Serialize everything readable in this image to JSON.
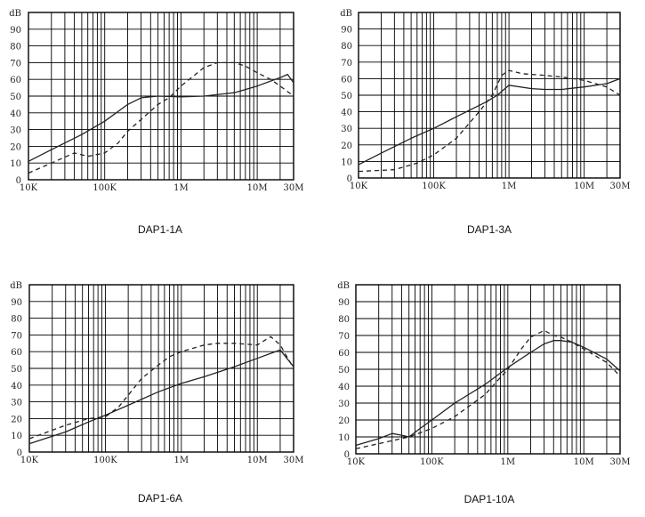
{
  "chart_data": [
    {
      "type": "line",
      "title": "DAP1-1A",
      "xscale": "log",
      "xlim": [
        10000,
        30000000
      ],
      "ylim": [
        0,
        100
      ],
      "ylabel": "dB",
      "yticks": [
        "0",
        "10",
        "20",
        "30",
        "40",
        "50",
        "60",
        "70",
        "80",
        "90",
        "dB"
      ],
      "xticks": [
        {
          "v": 10000,
          "label": "10K"
        },
        {
          "v": 100000,
          "label": "100K"
        },
        {
          "v": 1000000,
          "label": "1M"
        },
        {
          "v": 10000000,
          "label": "10M"
        },
        {
          "v": 30000000,
          "label": "30M"
        }
      ],
      "series": [
        {
          "style": "solid",
          "x": [
            10000,
            20000,
            50000,
            100000,
            200000,
            300000,
            500000,
            1000000,
            2000000,
            5000000,
            10000000,
            15000000,
            20000000,
            25000000,
            30000000
          ],
          "y": [
            11,
            18,
            27,
            35,
            45,
            49,
            50,
            49.5,
            50,
            52,
            56,
            59,
            61,
            63,
            58
          ]
        },
        {
          "style": "dashed",
          "x": [
            10000,
            20000,
            40000,
            60000,
            100000,
            150000,
            200000,
            300000,
            500000,
            700000,
            1000000,
            2000000,
            3000000,
            5000000,
            7000000,
            10000000,
            15000000,
            20000000,
            30000000
          ],
          "y": [
            4,
            10,
            16,
            14,
            16,
            22,
            29,
            36,
            45,
            49,
            56,
            67,
            70,
            70,
            68,
            64,
            60,
            56,
            50
          ]
        }
      ]
    },
    {
      "type": "line",
      "title": "DAP1-3A",
      "xscale": "log",
      "xlim": [
        10000,
        30000000
      ],
      "ylim": [
        0,
        100
      ],
      "ylabel": "dB",
      "yticks": [
        "0",
        "10",
        "20",
        "30",
        "40",
        "50",
        "60",
        "70",
        "80",
        "90",
        "dB"
      ],
      "xticks": [
        {
          "v": 10000,
          "label": "10K"
        },
        {
          "v": 100000,
          "label": "100K"
        },
        {
          "v": 1000000,
          "label": "1M"
        },
        {
          "v": 10000000,
          "label": "10M"
        },
        {
          "v": 30000000,
          "label": "30M"
        }
      ],
      "series": [
        {
          "style": "solid",
          "x": [
            10000,
            20000,
            50000,
            100000,
            200000,
            500000,
            700000,
            1000000,
            2000000,
            3000000,
            5000000,
            10000000,
            20000000,
            30000000
          ],
          "y": [
            8,
            15,
            24,
            30,
            37,
            46,
            50,
            56,
            54,
            53.5,
            53.5,
            55,
            57,
            60
          ]
        },
        {
          "style": "dashed",
          "x": [
            10000,
            30000,
            60000,
            100000,
            200000,
            400000,
            600000,
            800000,
            1000000,
            1500000,
            3000000,
            5000000,
            10000000,
            20000000,
            30000000
          ],
          "y": [
            4,
            5,
            9,
            14,
            24,
            40,
            50,
            62,
            65,
            63,
            62,
            61,
            59,
            55,
            50
          ]
        }
      ]
    },
    {
      "type": "line",
      "title": "DAP1-6A",
      "xscale": "log",
      "xlim": [
        10000,
        30000000
      ],
      "ylim": [
        0,
        100
      ],
      "ylabel": "dB",
      "yticks": [
        "0",
        "10",
        "20",
        "30",
        "40",
        "50",
        "60",
        "70",
        "80",
        "90",
        "dB"
      ],
      "xticks": [
        {
          "v": 10000,
          "label": "10K"
        },
        {
          "v": 100000,
          "label": "100K"
        },
        {
          "v": 1000000,
          "label": "1M"
        },
        {
          "v": 10000000,
          "label": "10M"
        },
        {
          "v": 30000000,
          "label": "30M"
        }
      ],
      "series": [
        {
          "style": "solid",
          "x": [
            10000,
            30000,
            60000,
            100000,
            200000,
            500000,
            1000000,
            2000000,
            5000000,
            10000000,
            15000000,
            20000000,
            30000000
          ],
          "y": [
            5,
            12,
            18,
            22,
            28,
            36,
            41,
            45,
            51,
            56,
            59,
            61,
            51
          ]
        },
        {
          "style": "dashed",
          "x": [
            10000,
            30000,
            60000,
            100000,
            150000,
            200000,
            300000,
            500000,
            700000,
            1000000,
            2000000,
            3000000,
            5000000,
            10000000,
            15000000,
            20000000,
            30000000
          ],
          "y": [
            8,
            16,
            20,
            21,
            27,
            34,
            44,
            52,
            57,
            60,
            64,
            65,
            65,
            64,
            69,
            64,
            50
          ]
        }
      ]
    },
    {
      "type": "line",
      "title": "DAP1-10A",
      "xscale": "log",
      "xlim": [
        10000,
        30000000
      ],
      "ylim": [
        0,
        100
      ],
      "ylabel": "dB",
      "yticks": [
        "0",
        "10",
        "20",
        "30",
        "40",
        "50",
        "60",
        "70",
        "80",
        "90",
        "dB"
      ],
      "xticks": [
        {
          "v": 10000,
          "label": "10K"
        },
        {
          "v": 100000,
          "label": "100K"
        },
        {
          "v": 1000000,
          "label": "1M"
        },
        {
          "v": 10000000,
          "label": "10M"
        },
        {
          "v": 30000000,
          "label": "30M"
        }
      ],
      "series": [
        {
          "style": "solid",
          "x": [
            10000,
            20000,
            30000,
            40000,
            50000,
            70000,
            100000,
            200000,
            500000,
            1000000,
            2000000,
            3000000,
            4000000,
            5000000,
            7000000,
            10000000,
            20000000,
            30000000
          ],
          "y": [
            5,
            9,
            12,
            11,
            10,
            15,
            20,
            30,
            41,
            51,
            60,
            65,
            67,
            67,
            66,
            63,
            56,
            49
          ]
        },
        {
          "style": "dashed",
          "x": [
            10000,
            20000,
            50000,
            100000,
            200000,
            500000,
            1000000,
            1500000,
            2000000,
            3000000,
            4000000,
            5000000,
            7000000,
            10000000,
            20000000,
            30000000
          ],
          "y": [
            3,
            6,
            10,
            15,
            22,
            35,
            50,
            62,
            69,
            73,
            70,
            69,
            66,
            62,
            54,
            46
          ]
        }
      ]
    }
  ]
}
